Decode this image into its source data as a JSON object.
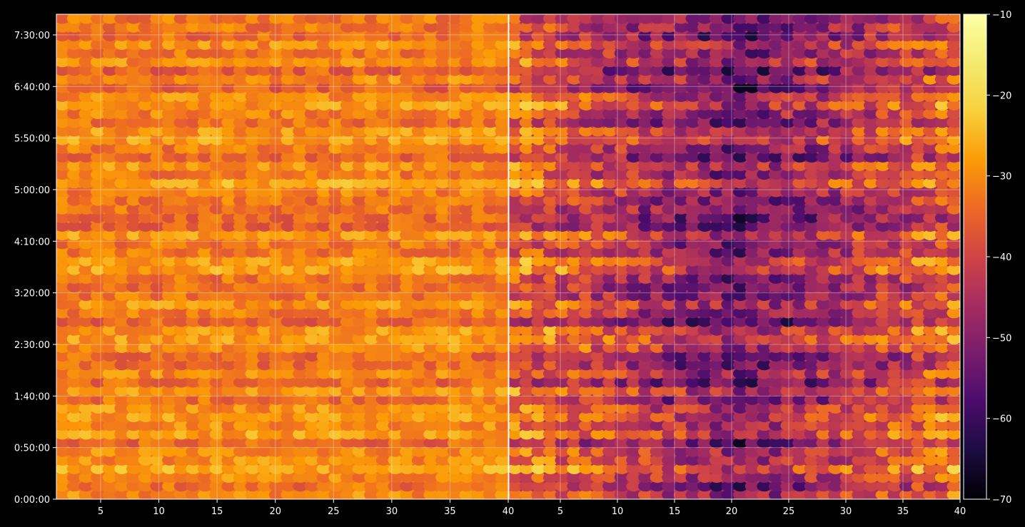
{
  "chart_data": {
    "type": "heatmap",
    "title": "",
    "xlabel": "",
    "ylabel": "",
    "grid": true,
    "panels": [
      {
        "name": "",
        "x_range": [
          1.2,
          40
        ],
        "x_ticks": [
          "5",
          "10",
          "15",
          "20",
          "25",
          "30",
          "35",
          "40"
        ],
        "x_tick_values": [
          5,
          10,
          15,
          20,
          25,
          30,
          35,
          40
        ],
        "y_range_seconds": [
          0,
          28200
        ],
        "y_ticks": [
          "0:00:00",
          "0:50:00",
          "1:40:00",
          "2:30:00",
          "3:20:00",
          "4:10:00",
          "5:00:00",
          "5:50:00",
          "6:40:00",
          "7:30:00"
        ],
        "y_tick_values_seconds": [
          0,
          3000,
          6000,
          9000,
          12000,
          15000,
          18000,
          21000,
          24000,
          27000
        ],
        "value_range": [
          -45,
          -18
        ]
      },
      {
        "name": "",
        "x_range": [
          0.5,
          40
        ],
        "x_ticks": [
          "5",
          "10",
          "15",
          "20",
          "25",
          "30",
          "35",
          "40"
        ],
        "x_tick_values": [
          5,
          10,
          15,
          20,
          25,
          30,
          35,
          40
        ],
        "y_range_seconds": [
          0,
          28200
        ],
        "value_range": [
          -70,
          -20
        ]
      }
    ],
    "colorbar": {
      "colormap": "inferno",
      "range": [
        -70,
        -10
      ],
      "ticks": [
        "−70",
        "−60",
        "−50",
        "−40",
        "−30",
        "−20",
        "−10"
      ],
      "tick_values": [
        -70,
        -60,
        -50,
        -40,
        -30,
        -20,
        -10
      ]
    }
  }
}
